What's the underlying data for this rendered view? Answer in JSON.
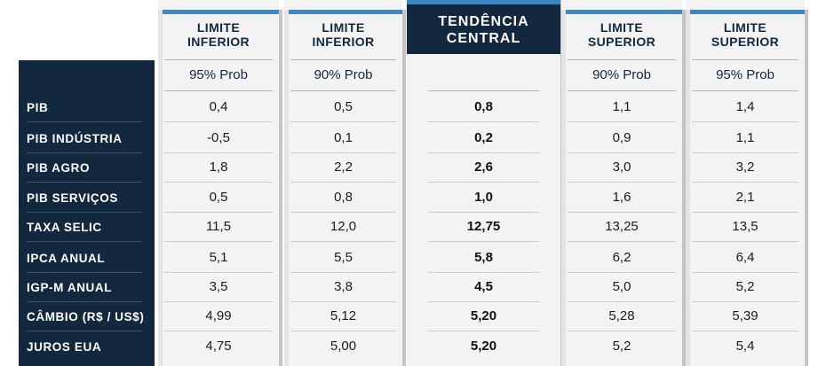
{
  "columns": [
    {
      "title_line1": "LIMITE",
      "title_line2": "INFERIOR",
      "sub": "95% Prob",
      "kind": "light"
    },
    {
      "title_line1": "LIMITE",
      "title_line2": "INFERIOR",
      "sub": "90% Prob",
      "kind": "light"
    },
    {
      "title_line1": "TENDÊNCIA",
      "title_line2": "CENTRAL",
      "sub": "",
      "kind": "dark"
    },
    {
      "title_line1": "LIMITE",
      "title_line2": "SUPERIOR",
      "sub": "90% Prob",
      "kind": "light"
    },
    {
      "title_line1": "LIMITE",
      "title_line2": "SUPERIOR",
      "sub": "95% Prob",
      "kind": "light"
    }
  ],
  "rows": [
    "PIB",
    "PIB INDÚSTRIA",
    "PIB AGRO",
    "PIB SERVIÇOS",
    "TAXA SELIC",
    "IPCA ANUAL",
    "IGP-M ANUAL",
    "CÂMBIO (R$ / US$)",
    "JUROS EUA"
  ],
  "chart_data": {
    "type": "table",
    "title": "",
    "header_groups": [
      "LIMITE INFERIOR",
      "LIMITE INFERIOR",
      "TENDÊNCIA CENTRAL",
      "LIMITE SUPERIOR",
      "LIMITE SUPERIOR"
    ],
    "sub_headers": [
      "95% Prob",
      "90% Prob",
      "",
      "90% Prob",
      "95% Prob"
    ],
    "row_labels": [
      "PIB",
      "PIB INDÚSTRIA",
      "PIB AGRO",
      "PIB SERVIÇOS",
      "TAXA SELIC",
      "IPCA ANUAL",
      "IGP-M ANUAL",
      "CÂMBIO (R$ / US$)",
      "JUROS EUA"
    ],
    "cells": [
      [
        "0,4",
        "0,5",
        "0,8",
        "1,1",
        "1,4"
      ],
      [
        "-0,5",
        "0,1",
        "0,2",
        "0,9",
        "1,1"
      ],
      [
        "1,8",
        "2,2",
        "2,6",
        "3,0",
        "3,2"
      ],
      [
        "0,5",
        "0,8",
        "1,0",
        "1,6",
        "2,1"
      ],
      [
        "11,5",
        "12,0",
        "12,75",
        "13,25",
        "13,5"
      ],
      [
        "5,1",
        "5,5",
        "5,8",
        "6,2",
        "6,4"
      ],
      [
        "3,5",
        "3,8",
        "4,5",
        "5,0",
        "5,2"
      ],
      [
        "4,99",
        "5,12",
        "5,20",
        "5,28",
        "5,39"
      ],
      [
        "4,75",
        "5,00",
        "5,20",
        "5,2",
        "5,4"
      ]
    ],
    "emphasized_column": "TENDÊNCIA CENTRAL"
  }
}
